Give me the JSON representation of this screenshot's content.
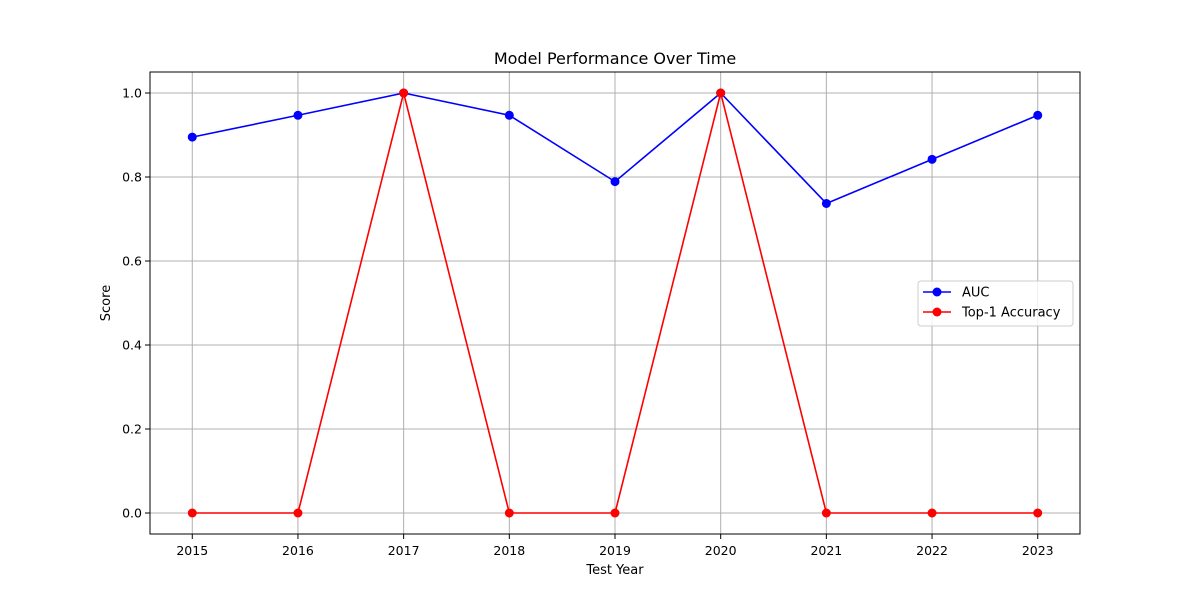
{
  "chart_data": {
    "type": "line",
    "title": "Model Performance Over Time",
    "xlabel": "Test Year",
    "ylabel": "Score",
    "x": [
      "2015",
      "2016",
      "2017",
      "2018",
      "2019",
      "2020",
      "2021",
      "2022",
      "2023"
    ],
    "xlim": [
      2014.6,
      2023.4
    ],
    "ylim": [
      -0.05,
      1.05
    ],
    "yticks": [
      0.0,
      0.2,
      0.4,
      0.6,
      0.8,
      1.0
    ],
    "ytick_labels": [
      "0.0",
      "0.2",
      "0.4",
      "0.6",
      "0.8",
      "1.0"
    ],
    "grid": true,
    "legend_position": "center-right",
    "series": [
      {
        "name": "AUC",
        "color": "#0000ff",
        "marker": "circle",
        "values": [
          0.895,
          0.947,
          1.0,
          0.947,
          0.789,
          1.0,
          0.737,
          0.842,
          0.947
        ]
      },
      {
        "name": "Top-1 Accuracy",
        "color": "#ff0000",
        "marker": "circle",
        "values": [
          0.0,
          0.0,
          1.0,
          0.0,
          0.0,
          1.0,
          0.0,
          0.0,
          0.0
        ]
      }
    ]
  }
}
